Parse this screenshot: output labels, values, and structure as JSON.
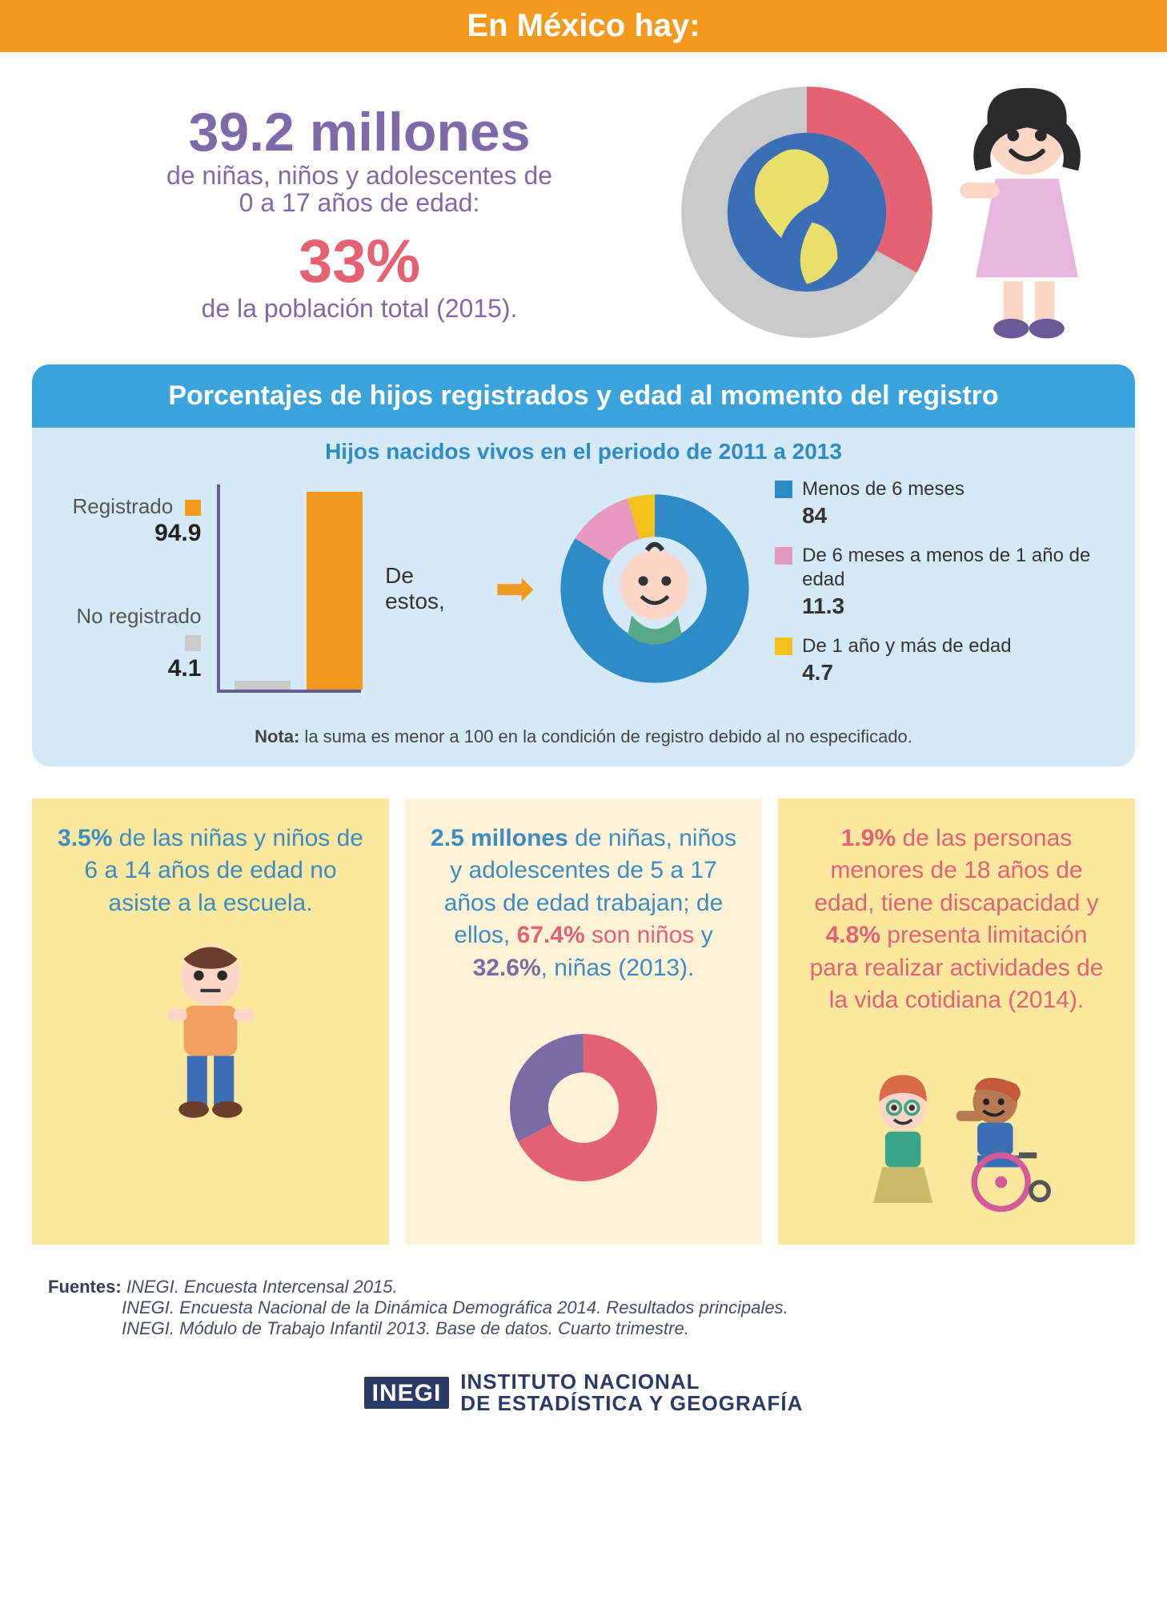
{
  "colors": {
    "orange": "#f39a1e",
    "purple": "#7d6aa8",
    "pink": "#e46273",
    "blue": "#3ba4dd",
    "lightblue": "#d6e9f7",
    "grey": "#c9c9c9",
    "yellow": "#fbe89e",
    "cream": "#fff2d7",
    "darkpurple": "#6a5a96",
    "donutBlue": "#2d8bc5",
    "donutPink": "#e79ac0",
    "donutYellow": "#f2c11b"
  },
  "header": {
    "title": "En México hay:"
  },
  "top": {
    "stat1": "39.2 millones",
    "line1": "de niñas, niños y adolescentes de",
    "line2": "0 a 17 años de edad:",
    "stat2": "33%",
    "line3": "de la población total (2015).",
    "globe_ring": {
      "slice_pct": 33,
      "slice_color": "#e46273",
      "rest_color": "#c9c9c9"
    }
  },
  "regPanel": {
    "title": "Porcentajes de hijos registrados y edad al momento del registro",
    "subtitle": "Hijos nacidos vivos en el periodo de 2011 a 2013",
    "bars": {
      "registered": {
        "label": "Registrado",
        "value": 94.9,
        "color": "#f39a1e"
      },
      "not_registered": {
        "label": "No registrado",
        "value": 4.1,
        "color": "#c9c9c9"
      }
    },
    "arrow_text": "De estos,",
    "donut": {
      "slices": [
        {
          "label": "Menos de 6 meses",
          "value": 84.0,
          "color": "#2d8bc5"
        },
        {
          "label": "De 6 meses a menos de 1 año de edad",
          "value": 11.3,
          "color": "#e79ac0"
        },
        {
          "label": "De 1 año y más de edad",
          "value": 4.7,
          "color": "#f2c11b"
        }
      ]
    },
    "note_label": "Nota:",
    "note": " la suma es menor a 100 en la condición de registro debido al no especificado."
  },
  "cards": [
    {
      "bg": "#fbe89e",
      "html": "<span class='c-blue'><b>3.5%</b></span> <span class='c-blue'>de las niñas y niños de 6 a 14 años de edad no asiste a la escuela.</span>"
    },
    {
      "bg": "#fff2d7",
      "html": "<span class='c-blue'><b>2.5 millones</b></span> <span class='c-blue'>de niñas, niños y adolescentes de 5 a 17 años de edad trabajan; de ellos,</span> <span class='c-pink'><b>67.4%</b> son niños</span> <span class='c-blue'>y</span> <span class='c-purple'><b>32.6%</b></span><span class='c-blue'>, niñas (2013).</span>",
      "donut": {
        "boys": 67.4,
        "girls": 32.6,
        "boys_color": "#e46273",
        "girls_color": "#7a6ba5"
      }
    },
    {
      "bg": "#fbe89e",
      "html": "<span class='c-pink'><b>1.9%</b> de las personas menores de 18 años de edad, tiene discapacidad y <b>4.8%</b> presenta limitación para realizar actividades de la vida cotidiana (2014).</span>"
    }
  ],
  "sources": {
    "label": "Fuentes:",
    "lines": [
      "INEGI. Encuesta Intercensal 2015.",
      "INEGI. Encuesta Nacional de la Dinámica Demográfica 2014. Resultados principales.",
      "INEGI. Módulo de Trabajo Infantil 2013. Base de datos. Cuarto trimestre."
    ]
  },
  "logo": {
    "mark": "INEGI",
    "line1": "INSTITUTO NACIONAL",
    "line2": "DE ESTADÍSTICA Y GEOGRAFÍA"
  }
}
